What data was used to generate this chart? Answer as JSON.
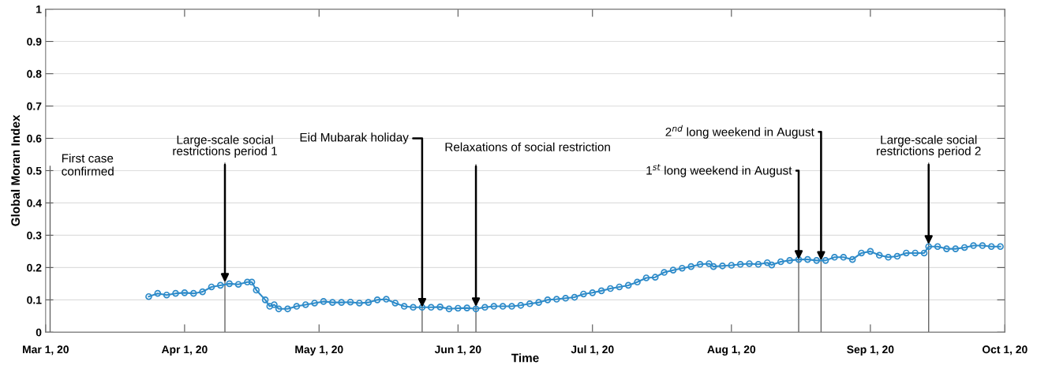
{
  "chart_data": {
    "type": "line",
    "xlabel": "Time",
    "ylabel": "Global Moran Index",
    "x": [
      "2020-03-24",
      "2020-03-26",
      "2020-03-28",
      "2020-03-30",
      "2020-04-01",
      "2020-04-03",
      "2020-04-05",
      "2020-04-07",
      "2020-04-09",
      "2020-04-11",
      "2020-04-13",
      "2020-04-15",
      "2020-04-16",
      "2020-04-17",
      "2020-04-19",
      "2020-04-20",
      "2020-04-21",
      "2020-04-22",
      "2020-04-24",
      "2020-04-26",
      "2020-04-28",
      "2020-04-30",
      "2020-05-02",
      "2020-05-04",
      "2020-05-06",
      "2020-05-08",
      "2020-05-10",
      "2020-05-12",
      "2020-05-14",
      "2020-05-16",
      "2020-05-18",
      "2020-05-20",
      "2020-05-22",
      "2020-05-24",
      "2020-05-26",
      "2020-05-28",
      "2020-05-30",
      "2020-06-01",
      "2020-06-03",
      "2020-06-05",
      "2020-06-07",
      "2020-06-09",
      "2020-06-11",
      "2020-06-13",
      "2020-06-15",
      "2020-06-17",
      "2020-06-19",
      "2020-06-21",
      "2020-06-23",
      "2020-06-25",
      "2020-06-27",
      "2020-06-29",
      "2020-07-01",
      "2020-07-03",
      "2020-07-05",
      "2020-07-07",
      "2020-07-09",
      "2020-07-11",
      "2020-07-13",
      "2020-07-15",
      "2020-07-17",
      "2020-07-19",
      "2020-07-21",
      "2020-07-23",
      "2020-07-25",
      "2020-07-27",
      "2020-07-28",
      "2020-07-30",
      "2020-08-01",
      "2020-08-03",
      "2020-08-05",
      "2020-08-07",
      "2020-08-09",
      "2020-08-10",
      "2020-08-12",
      "2020-08-14",
      "2020-08-16",
      "2020-08-18",
      "2020-08-20",
      "2020-08-22",
      "2020-08-24",
      "2020-08-26",
      "2020-08-28",
      "2020-08-30",
      "2020-09-01",
      "2020-09-03",
      "2020-09-05",
      "2020-09-07",
      "2020-09-09",
      "2020-09-11",
      "2020-09-13",
      "2020-09-14",
      "2020-09-16",
      "2020-09-18",
      "2020-09-20",
      "2020-09-22",
      "2020-09-24",
      "2020-09-26",
      "2020-09-28",
      "2020-09-30"
    ],
    "series": [
      {
        "color": "#2e8bc9",
        "values": [
          0.11,
          0.12,
          0.115,
          0.12,
          0.122,
          0.12,
          0.125,
          0.14,
          0.145,
          0.15,
          0.148,
          0.155,
          0.155,
          0.13,
          0.1,
          0.08,
          0.085,
          0.072,
          0.072,
          0.08,
          0.085,
          0.09,
          0.095,
          0.092,
          0.092,
          0.093,
          0.09,
          0.092,
          0.1,
          0.102,
          0.09,
          0.08,
          0.077,
          0.077,
          0.077,
          0.078,
          0.072,
          0.074,
          0.075,
          0.072,
          0.077,
          0.08,
          0.08,
          0.08,
          0.083,
          0.088,
          0.092,
          0.1,
          0.102,
          0.105,
          0.108,
          0.118,
          0.122,
          0.128,
          0.135,
          0.14,
          0.145,
          0.155,
          0.168,
          0.17,
          0.185,
          0.192,
          0.198,
          0.203,
          0.21,
          0.212,
          0.203,
          0.205,
          0.207,
          0.21,
          0.212,
          0.21,
          0.215,
          0.208,
          0.218,
          0.222,
          0.225,
          0.225,
          0.222,
          0.222,
          0.232,
          0.232,
          0.225,
          0.245,
          0.25,
          0.238,
          0.232,
          0.235,
          0.245,
          0.245,
          0.245,
          0.265,
          0.265,
          0.258,
          0.258,
          0.262,
          0.268,
          0.268,
          0.265,
          0.265
        ]
      }
    ],
    "xlim": [
      "2020-03-01",
      "2020-10-01"
    ],
    "xticks": [
      {
        "value": "2020-03-01",
        "label": "Mar 1, 20"
      },
      {
        "value": "2020-04-01",
        "label": "Apr 1, 20"
      },
      {
        "value": "2020-05-01",
        "label": "May 1, 20"
      },
      {
        "value": "2020-06-01",
        "label": "Jun 1, 20"
      },
      {
        "value": "2020-07-01",
        "label": "Jul 1, 20"
      },
      {
        "value": "2020-08-01",
        "label": "Aug 1, 20"
      },
      {
        "value": "2020-09-01",
        "label": "Sep 1, 20"
      },
      {
        "value": "2020-10-01",
        "label": "Oct 1, 20"
      }
    ],
    "ylim": [
      0,
      1
    ],
    "yticks": [
      0,
      0.1,
      0.2,
      0.3,
      0.4,
      0.5,
      0.6,
      0.7,
      0.8,
      0.9,
      1
    ],
    "grid": "y",
    "marker": "circle",
    "line_style": "solid",
    "ref_lines": [
      {
        "axis": "x",
        "value": "2020-03-02",
        "label": "First case\nconfirmed"
      },
      {
        "axis": "x",
        "value": "2020-04-10",
        "label": "Large-scale social\nrestrictions period 1"
      },
      {
        "axis": "x",
        "value": "2020-05-24",
        "label": "Eid Mubarak holiday"
      },
      {
        "axis": "x",
        "value": "2020-06-05",
        "label": "Relaxations of social restriction"
      },
      {
        "axis": "x",
        "value": "2020-08-16",
        "label": "1$^{st}$ long weekend in August"
      },
      {
        "axis": "x",
        "value": "2020-08-21",
        "label": "2$^{nd}$ long weekend in August"
      },
      {
        "axis": "x",
        "value": "2020-09-14",
        "label": "Large-scale social\nrestrictions period 2"
      }
    ]
  }
}
